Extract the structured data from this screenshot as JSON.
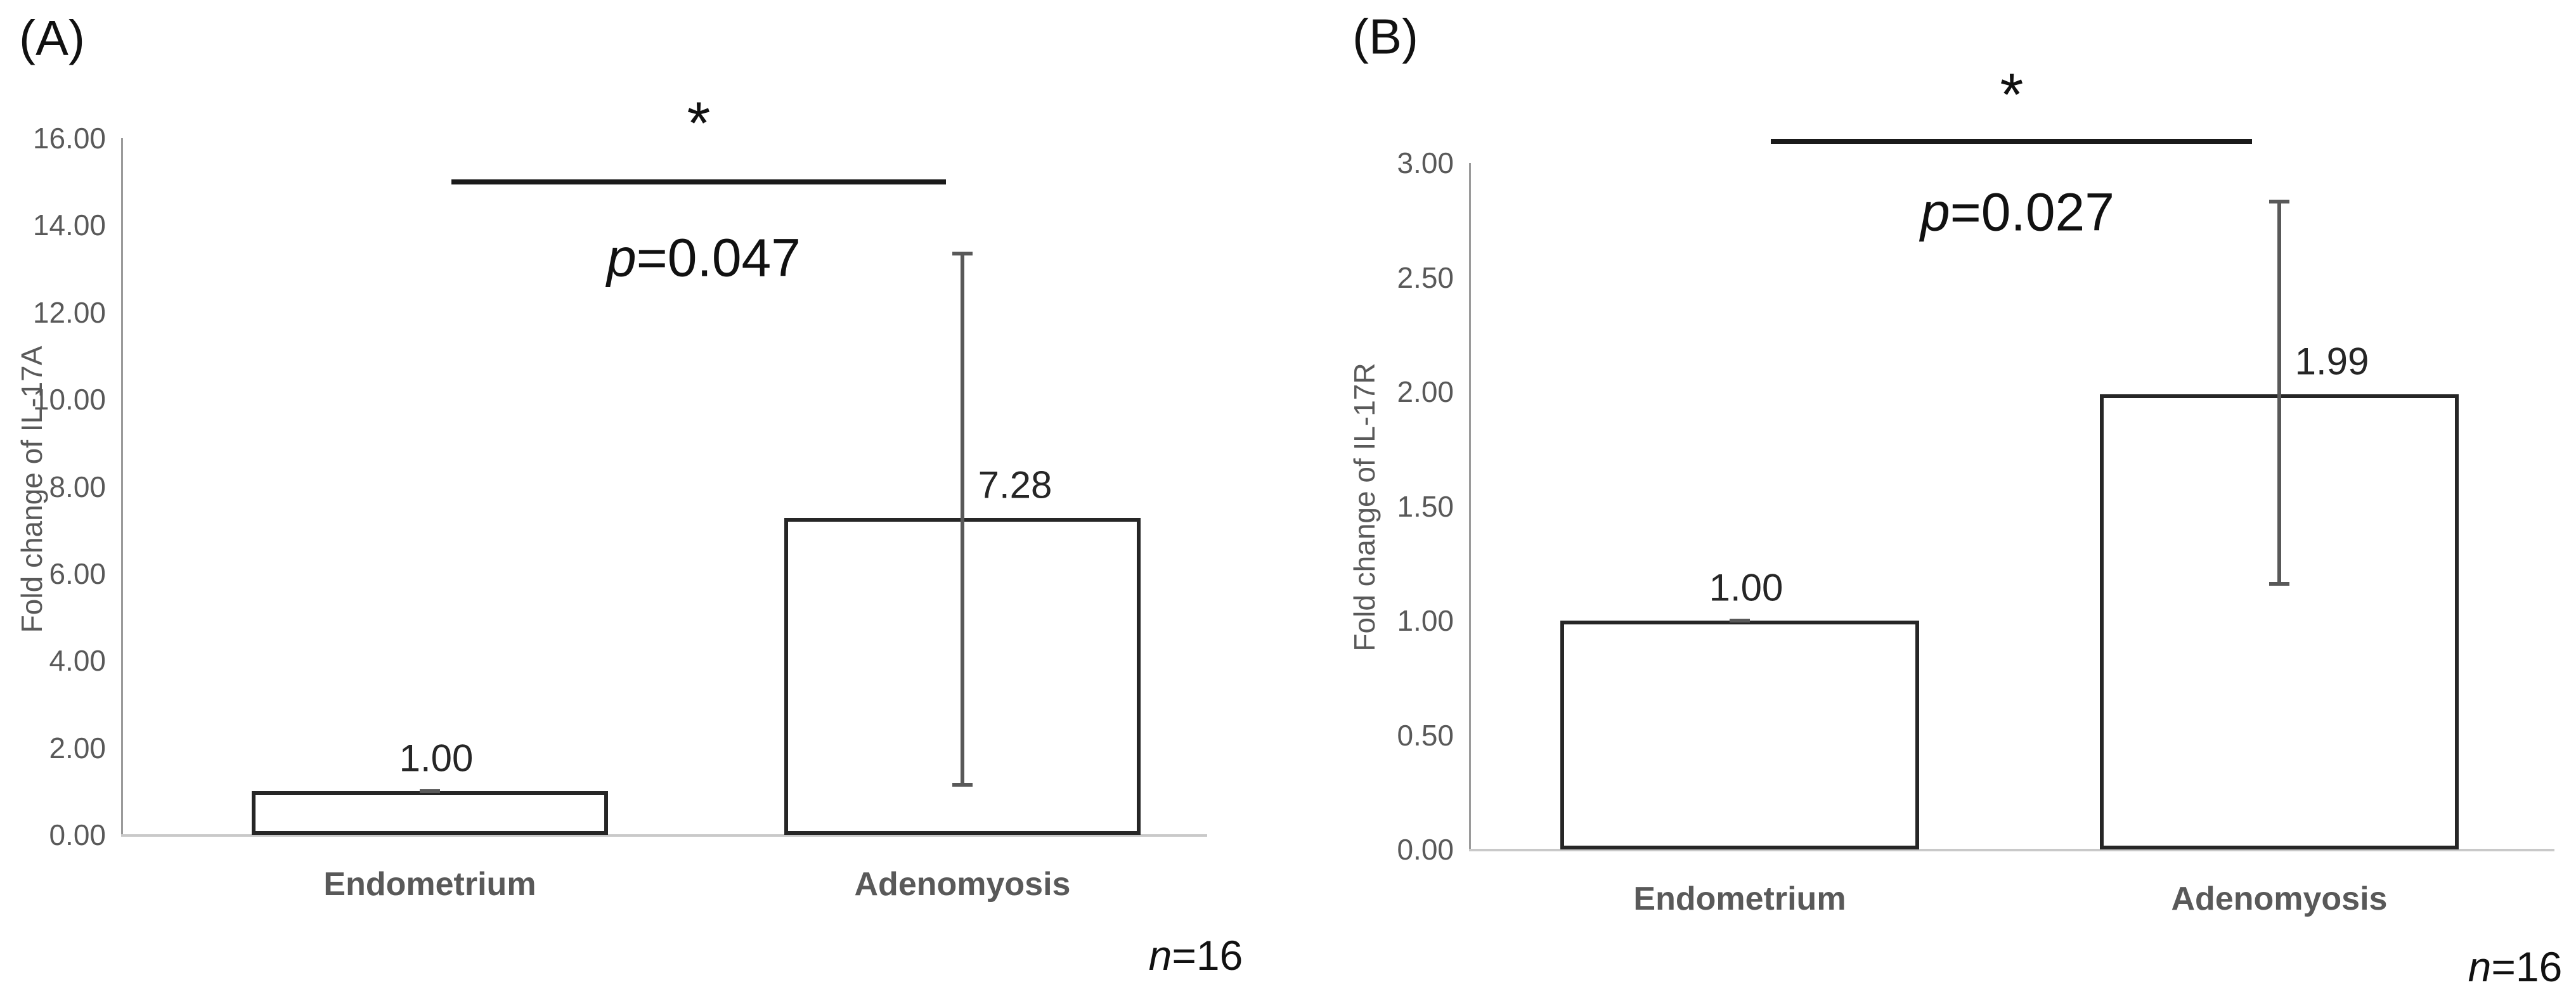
{
  "chart_data": [
    {
      "type": "bar",
      "panel_label": "(A)",
      "ylabel": "Fold change of IL-17A",
      "categories": [
        "Endometrium",
        "Adenomyosis"
      ],
      "values": [
        1.0,
        7.28
      ],
      "value_labels": [
        "1.00",
        "7.28"
      ],
      "error_low": [
        1.0,
        1.15
      ],
      "error_high": [
        1.0,
        13.35
      ],
      "ylim": [
        0,
        16
      ],
      "ystep": 2,
      "y_tick_labels": [
        "16.00",
        "14.00",
        "12.00",
        "10.00",
        "8.00",
        "6.00",
        "4.00",
        "2.00",
        "0.00"
      ],
      "grid": false,
      "legend": "none",
      "bar_fill": "#ffffff",
      "bar_border": "#262626",
      "sig_marker": "*",
      "p": {
        "italic": "p",
        "rest": "=0.047"
      },
      "n": {
        "italic": "n",
        "rest": "=16"
      }
    },
    {
      "type": "bar",
      "panel_label": "(B)",
      "ylabel": "Fold change of IL-17R",
      "categories": [
        "Endometrium",
        "Adenomyosis"
      ],
      "values": [
        1.0,
        1.99
      ],
      "value_labels": [
        "1.00",
        "1.99"
      ],
      "error_low": [
        1.0,
        1.16
      ],
      "error_high": [
        1.0,
        2.83
      ],
      "ylim": [
        0,
        3
      ],
      "ystep": 0.5,
      "y_tick_labels": [
        "3.00",
        "2.50",
        "2.00",
        "1.50",
        "1.00",
        "0.50",
        "0.00"
      ],
      "grid": false,
      "legend": "none",
      "bar_fill": "#ffffff",
      "bar_border": "#262626",
      "sig_marker": "*",
      "p": {
        "italic": "p",
        "rest": "=0.027"
      },
      "n": {
        "italic": "n",
        "rest": "=16"
      }
    }
  ]
}
